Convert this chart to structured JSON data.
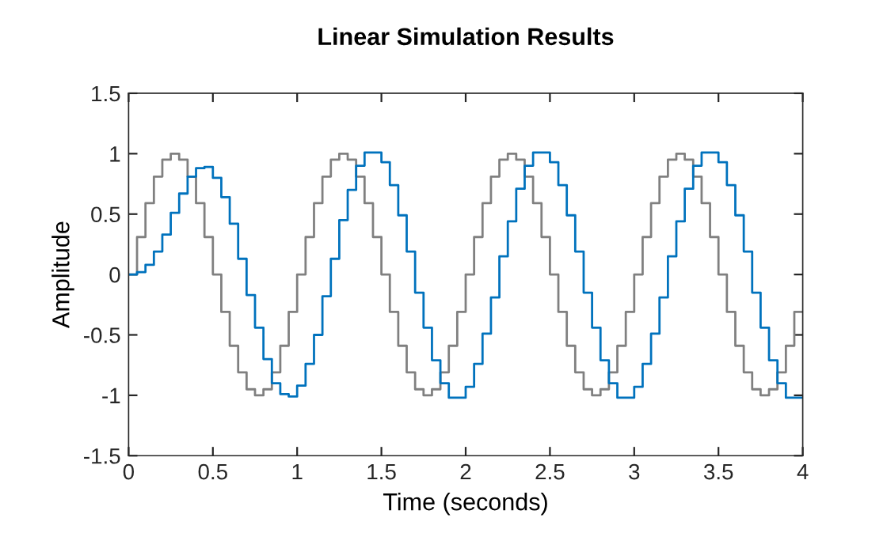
{
  "chart_data": {
    "type": "step",
    "title": "Linear Simulation Results",
    "xlabel": "Time (seconds)",
    "ylabel": "Amplitude",
    "x": [
      0,
      0.05,
      0.1,
      0.15,
      0.2,
      0.25,
      0.3,
      0.35,
      0.4,
      0.45,
      0.5,
      0.55,
      0.6,
      0.65,
      0.7,
      0.75,
      0.8,
      0.85,
      0.9,
      0.95,
      1,
      1.05,
      1.1,
      1.15,
      1.2,
      1.25,
      1.3,
      1.35,
      1.4,
      1.45,
      1.5,
      1.55,
      1.6,
      1.65,
      1.7,
      1.75,
      1.8,
      1.85,
      1.9,
      1.95,
      2,
      2.05,
      2.1,
      2.15,
      2.2,
      2.25,
      2.3,
      2.35,
      2.4,
      2.45,
      2.5,
      2.55,
      2.6,
      2.65,
      2.7,
      2.75,
      2.8,
      2.85,
      2.9,
      2.95,
      3,
      3.05,
      3.1,
      3.15,
      3.2,
      3.25,
      3.3,
      3.35,
      3.4,
      3.45,
      3.5,
      3.55,
      3.6,
      3.65,
      3.7,
      3.75,
      3.8,
      3.85,
      3.9,
      3.95,
      4
    ],
    "series": [
      {
        "color": "#808080",
        "values": [
          0,
          0.31,
          0.59,
          0.81,
          0.95,
          1,
          0.95,
          0.81,
          0.59,
          0.31,
          0,
          -0.31,
          -0.59,
          -0.81,
          -0.95,
          -1,
          -0.95,
          -0.81,
          -0.59,
          -0.31,
          0,
          0.31,
          0.59,
          0.81,
          0.95,
          1,
          0.95,
          0.81,
          0.59,
          0.31,
          0,
          -0.31,
          -0.59,
          -0.81,
          -0.95,
          -1,
          -0.95,
          -0.81,
          -0.59,
          -0.31,
          0,
          0.31,
          0.59,
          0.81,
          0.95,
          1,
          0.95,
          0.81,
          0.59,
          0.31,
          0,
          -0.31,
          -0.59,
          -0.81,
          -0.95,
          -1,
          -0.95,
          -0.81,
          -0.59,
          -0.31,
          0,
          0.31,
          0.59,
          0.81,
          0.95,
          1,
          0.95,
          0.81,
          0.59,
          0.31,
          0,
          -0.31,
          -0.59,
          -0.81,
          -0.95,
          -1,
          -0.95,
          -0.81,
          -0.59,
          -0.31,
          -0.31
        ]
      },
      {
        "color": "#0072bd",
        "values": [
          0,
          0.02,
          0.08,
          0.19,
          0.33,
          0.51,
          0.67,
          0.81,
          0.88,
          0.89,
          0.8,
          0.64,
          0.42,
          0.13,
          -0.17,
          -0.44,
          -0.7,
          -0.9,
          -0.99,
          -1.01,
          -0.92,
          -0.74,
          -0.5,
          -0.18,
          0.13,
          0.45,
          0.7,
          0.9,
          1.01,
          1.01,
          0.93,
          0.74,
          0.49,
          0.19,
          -0.15,
          -0.44,
          -0.71,
          -0.9,
          -1.02,
          -1.02,
          -0.93,
          -0.74,
          -0.49,
          -0.19,
          0.15,
          0.44,
          0.71,
          0.9,
          1.01,
          1.01,
          0.93,
          0.74,
          0.49,
          0.19,
          -0.15,
          -0.44,
          -0.71,
          -0.9,
          -1.02,
          -1.02,
          -0.93,
          -0.74,
          -0.49,
          -0.19,
          0.15,
          0.44,
          0.71,
          0.9,
          1.01,
          1.01,
          0.93,
          0.74,
          0.49,
          0.19,
          -0.15,
          -0.44,
          -0.71,
          -0.9,
          -1.02,
          -1.02,
          -1.02
        ]
      }
    ],
    "xlim": [
      0,
      4
    ],
    "xticks": [
      0,
      0.5,
      1,
      1.5,
      2,
      2.5,
      3,
      3.5,
      4
    ],
    "ylim": [
      -1.5,
      1.5
    ],
    "yticks": [
      -1.5,
      -1,
      -0.5,
      0,
      0.5,
      1,
      1.5
    ],
    "grid": false,
    "legend": false
  }
}
